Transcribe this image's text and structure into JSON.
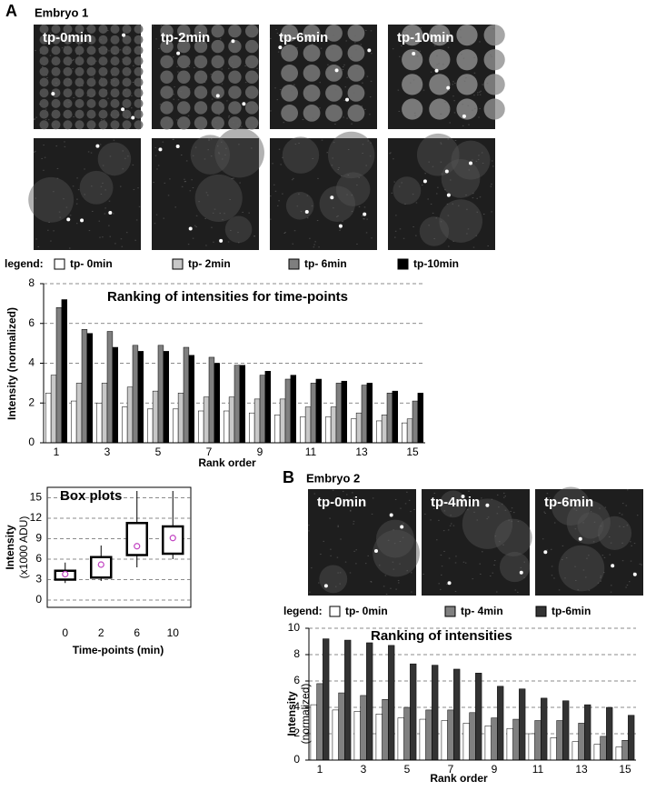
{
  "panels": [
    {
      "label": "A",
      "title": "Embryo 1",
      "images": [
        "tp-0min",
        "tp-2min",
        "tp-6min",
        "tp-10min"
      ]
    },
    {
      "label": "B",
      "title": "Embryo 2",
      "images": [
        "tp-0min",
        "tp-4min",
        "tp-6min"
      ]
    }
  ],
  "chart_data": [
    {
      "type": "bar",
      "title": "Ranking of intensities for time-points",
      "y_label": [
        "Intensity (normalized)"
      ],
      "x_label": "Rank order",
      "legend_title": "legend:",
      "categories": [
        "1",
        null,
        "3",
        null,
        "5",
        null,
        "7",
        null,
        "9",
        null,
        "11",
        null,
        "13",
        null,
        "15"
      ],
      "ylim": [
        0,
        8
      ],
      "yticks": [
        0,
        2,
        4,
        6,
        8
      ],
      "grid": true,
      "series": [
        {
          "name": "tp- 0min",
          "color": "#ffffff",
          "values": [
            2.5,
            2.1,
            2.0,
            1.8,
            1.7,
            1.7,
            1.6,
            1.6,
            1.5,
            1.4,
            1.3,
            1.3,
            1.2,
            1.1,
            1.0
          ]
        },
        {
          "name": "tp- 2min",
          "color": "#c8c8c8",
          "values": [
            3.4,
            3.0,
            3.0,
            2.8,
            2.6,
            2.5,
            2.3,
            2.3,
            2.2,
            2.2,
            1.8,
            1.8,
            1.5,
            1.4,
            1.2
          ]
        },
        {
          "name": "tp- 6min",
          "color": "#7f7f7f",
          "values": [
            6.8,
            5.7,
            5.6,
            4.9,
            4.9,
            4.8,
            4.3,
            3.9,
            3.4,
            3.2,
            3.0,
            3.0,
            2.9,
            2.5,
            2.1
          ]
        },
        {
          "name": "tp-10min",
          "color": "#000000",
          "values": [
            7.2,
            5.5,
            4.8,
            4.6,
            4.6,
            4.4,
            4.0,
            3.9,
            3.6,
            3.4,
            3.2,
            3.1,
            3.0,
            2.6,
            2.5
          ]
        }
      ]
    },
    {
      "type": "box",
      "title": "Box plots",
      "y_label": [
        "Intensity",
        "(x1000 ADU)"
      ],
      "x_label": "Time-points (min)",
      "categories": [
        "0",
        "2",
        "6",
        "10"
      ],
      "ylim": [
        0,
        16
      ],
      "yticks": [
        0,
        3,
        6,
        9,
        12,
        15
      ],
      "grid": true,
      "mean_color": "#c040c0",
      "boxes": [
        {
          "low": 2.5,
          "q1": 3.0,
          "q3": 4.3,
          "high": 5.5,
          "mean": 3.8
        },
        {
          "low": 2.8,
          "q1": 3.3,
          "q3": 6.3,
          "high": 8.0,
          "mean": 5.2
        },
        {
          "low": 4.8,
          "q1": 6.6,
          "q3": 11.3,
          "high": 16.0,
          "mean": 7.9
        },
        {
          "low": 6.0,
          "q1": 6.8,
          "q3": 10.8,
          "high": 16.0,
          "mean": 9.1
        }
      ]
    },
    {
      "type": "bar",
      "title": "Ranking of intensities",
      "y_label": [
        "Intensity",
        "(normalized)"
      ],
      "x_label": "Rank order",
      "legend_title": "legend:",
      "categories": [
        "1",
        null,
        "3",
        null,
        "5",
        null,
        "7",
        null,
        "9",
        null,
        "11",
        null,
        "13",
        null,
        "15"
      ],
      "ylim": [
        0,
        10
      ],
      "yticks": [
        0,
        2,
        4,
        6,
        8,
        10
      ],
      "grid": true,
      "series": [
        {
          "name": "tp- 0min",
          "color": "#ffffff",
          "values": [
            4.2,
            3.8,
            3.7,
            3.5,
            3.2,
            3.1,
            3.0,
            2.8,
            2.6,
            2.4,
            2.0,
            1.7,
            1.4,
            1.2,
            1.0
          ]
        },
        {
          "name": "tp- 4min",
          "color": "#808080",
          "values": [
            5.8,
            5.1,
            4.9,
            4.6,
            4.0,
            3.8,
            3.8,
            3.6,
            3.2,
            3.1,
            3.0,
            3.0,
            2.8,
            1.8,
            1.5
          ]
        },
        {
          "name": "tp-6min",
          "color": "#333333",
          "values": [
            9.2,
            9.1,
            8.9,
            8.7,
            7.3,
            7.2,
            6.9,
            6.6,
            5.6,
            5.4,
            4.7,
            4.5,
            4.2,
            4.0,
            3.4
          ]
        }
      ]
    }
  ]
}
